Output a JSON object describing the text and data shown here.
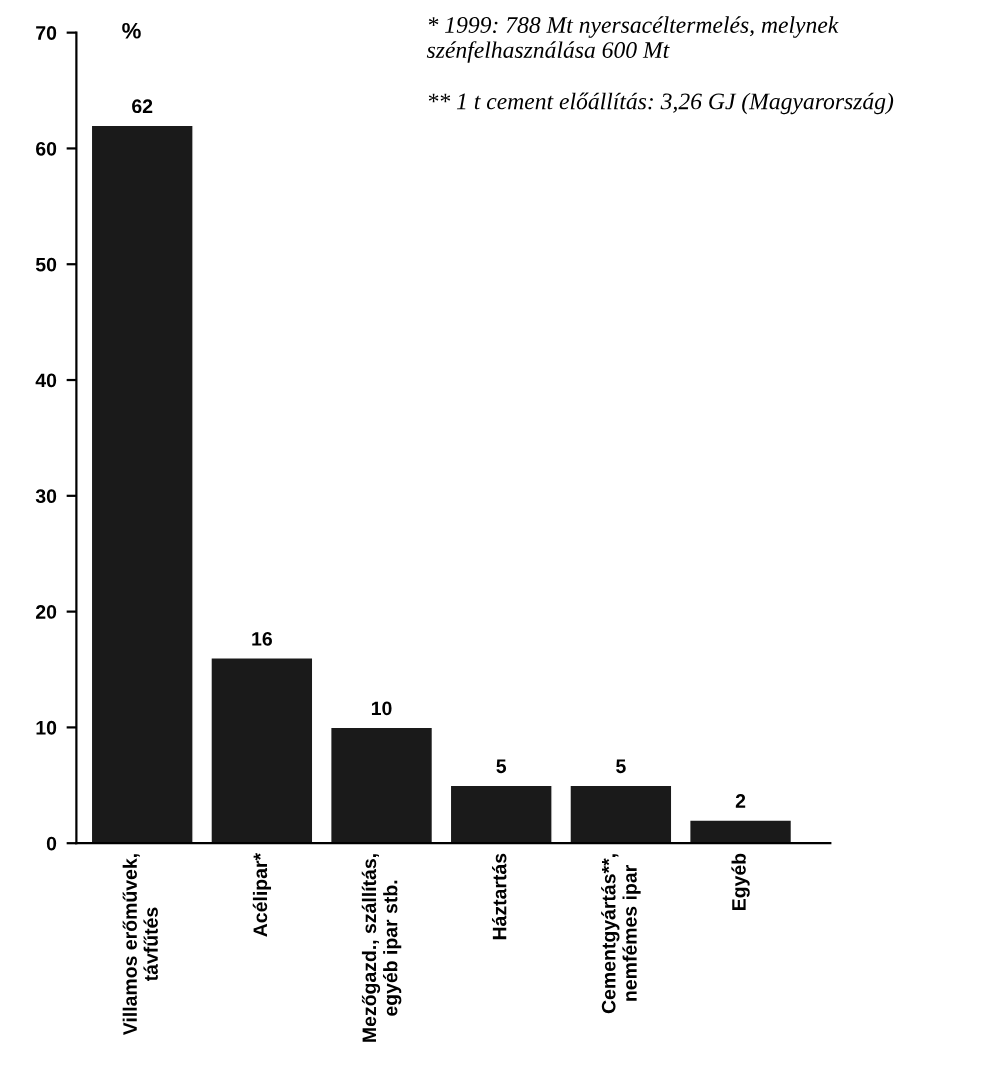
{
  "chart_data": {
    "type": "bar",
    "ylabel": "%",
    "categories": [
      "Villamos erőművek,\ntávfűtés",
      "Acélipar*",
      "Mezőgazd., szállítás,\negyéb ipar stb.",
      "Háztartás",
      "Cementgyártás**,\nnemfémes ipar",
      "Egyéb"
    ],
    "values": [
      62,
      16,
      10,
      5,
      5,
      2
    ],
    "color": "#1a1a1a",
    "ylim": [
      0,
      70
    ],
    "yticks": [
      0,
      10,
      20,
      30,
      40,
      50,
      60,
      70
    ],
    "data_labels": true,
    "grid": false,
    "annotations": [
      "* 1999: 788 Mt nyersacéltermelés, melynek szénfelhasználása 600 Mt",
      "** 1 t cement előállítás: 3,26 GJ (Magyarország)"
    ]
  }
}
